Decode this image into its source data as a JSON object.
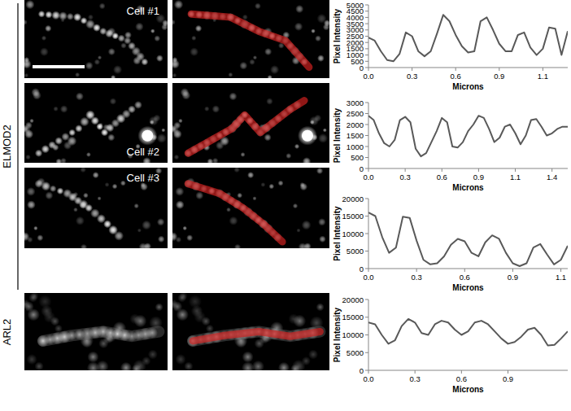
{
  "chart_data": [
    {
      "type": "line",
      "x_label": "Microns",
      "y_label": "Pixel Intensity",
      "color": "#595959",
      "grid": false,
      "categories": [
        "0.0",
        null,
        null,
        null,
        null,
        null,
        null,
        "0.3",
        null,
        null,
        null,
        null,
        null,
        null,
        "0.6",
        null,
        null,
        null,
        null,
        null,
        null,
        "0.9",
        null,
        null,
        null,
        null,
        null,
        null,
        "1.1",
        null,
        null,
        null,
        null
      ],
      "values": [
        2400,
        2150,
        1300,
        600,
        500,
        1100,
        2800,
        2500,
        1300,
        900,
        1300,
        2700,
        4200,
        3700,
        2600,
        1700,
        1200,
        1300,
        3700,
        4000,
        3000,
        1900,
        1300,
        1300,
        2600,
        2800,
        1600,
        1000,
        1500,
        3200,
        3100,
        1000,
        2900
      ],
      "ylim": [
        0,
        5000
      ],
      "yticks": [
        0,
        500,
        1000,
        1500,
        2000,
        2500,
        3000,
        3500,
        4000,
        4500,
        5000
      ]
    },
    {
      "type": "line",
      "x_label": "Microns",
      "y_label": "Pixel Intensity",
      "color": "#595959",
      "grid": false,
      "categories": [
        "0.0",
        null,
        null,
        null,
        null,
        null,
        null,
        "0.3",
        null,
        null,
        null,
        null,
        null,
        null,
        "0.6",
        null,
        null,
        null,
        null,
        null,
        null,
        "0.9",
        null,
        null,
        null,
        null,
        null,
        null,
        "1.1",
        null,
        null,
        null,
        null,
        null,
        null,
        "1.4",
        null,
        null,
        null
      ],
      "values": [
        2400,
        2200,
        1600,
        1150,
        1000,
        1300,
        2200,
        2350,
        2100,
        900,
        550,
        700,
        1200,
        1700,
        2300,
        2100,
        1000,
        950,
        1200,
        1700,
        2000,
        2400,
        2300,
        1800,
        1200,
        1400,
        1900,
        2000,
        1600,
        1100,
        1500,
        2200,
        2250,
        1900,
        1500,
        1600,
        1800,
        1900,
        1900
      ],
      "ylim": [
        0,
        3000
      ],
      "yticks": [
        0,
        500,
        1000,
        1500,
        2000,
        2500,
        3000
      ]
    },
    {
      "type": "line",
      "x_label": "Microns",
      "y_label": "Pixel Intensity",
      "color": "#595959",
      "grid": false,
      "categories": [
        "0.0",
        null,
        null,
        null,
        null,
        null,
        null,
        "0.3",
        null,
        null,
        null,
        null,
        null,
        null,
        "0.6",
        null,
        null,
        null,
        null,
        null,
        null,
        "0.9",
        null,
        null,
        null,
        null,
        null,
        null,
        "1.1",
        null
      ],
      "values": [
        16000,
        15000,
        9000,
        4500,
        6000,
        14800,
        14500,
        8000,
        2500,
        1200,
        1500,
        3500,
        6800,
        8500,
        7800,
        4500,
        3500,
        7500,
        9500,
        8500,
        4500,
        1500,
        700,
        1500,
        6000,
        7000,
        4000,
        1200,
        2500,
        6500
      ],
      "ylim": [
        0,
        20000
      ],
      "yticks": [
        0,
        5000,
        10000,
        15000,
        20000
      ]
    },
    {
      "type": "line",
      "x_label": "Microns",
      "y_label": "Pixel Intensity",
      "color": "#595959",
      "grid": false,
      "categories": [
        "0.0",
        null,
        null,
        null,
        null,
        null,
        null,
        "0.3",
        null,
        null,
        null,
        null,
        null,
        null,
        "0.6",
        null,
        null,
        null,
        null,
        null,
        null,
        "0.9",
        null,
        null,
        null,
        null,
        null,
        null,
        null,
        null,
        null
      ],
      "values": [
        13500,
        13000,
        10000,
        7500,
        8500,
        12500,
        14500,
        13500,
        10500,
        10000,
        13000,
        14000,
        13500,
        11500,
        10000,
        11000,
        13500,
        14000,
        13000,
        11000,
        9000,
        7500,
        8000,
        9500,
        11500,
        12000,
        10000,
        7000,
        7200,
        9000,
        11000
      ],
      "ylim": [
        0,
        20000
      ],
      "yticks": [
        0,
        5000,
        10000,
        15000,
        20000
      ]
    }
  ],
  "figure": {
    "groups": [
      "ELMOD2",
      "ARL2"
    ],
    "cells": [
      "Cell #1",
      "Cell #2",
      "Cell #3"
    ]
  }
}
